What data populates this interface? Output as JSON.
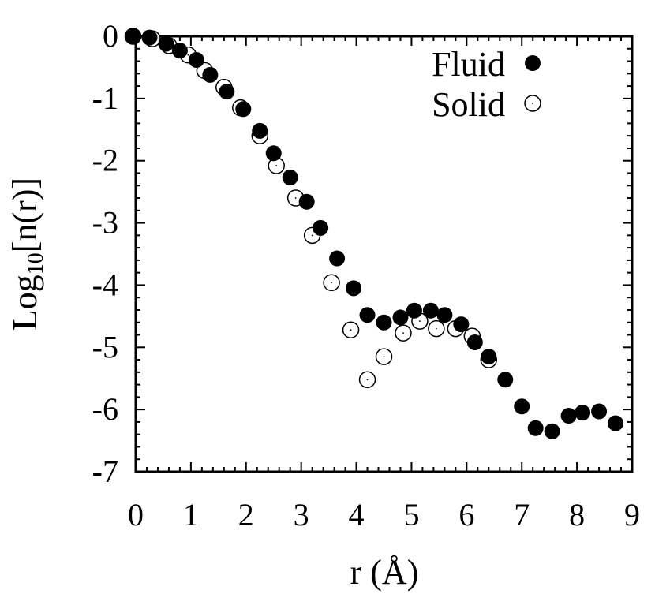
{
  "chart_data": {
    "type": "scatter",
    "xlabel": "r (Å)",
    "ylabel_main": "Log",
    "ylabel_sub": "10",
    "ylabel_tail": "[n(r)]",
    "xlim": [
      0,
      9
    ],
    "ylim": [
      -7,
      0
    ],
    "xticks": [
      0,
      1,
      2,
      3,
      4,
      5,
      6,
      7,
      8,
      9
    ],
    "yticks": [
      0,
      -1,
      -2,
      -3,
      -4,
      -5,
      -6,
      -7
    ],
    "legend_position": "top-right",
    "series": [
      {
        "name": "Fluid",
        "marker": "filled-circle",
        "color": "#000000",
        "points": [
          [
            -0.05,
            0.0
          ],
          [
            0.25,
            -0.02
          ],
          [
            0.55,
            -0.12
          ],
          [
            0.8,
            -0.23
          ],
          [
            1.1,
            -0.38
          ],
          [
            1.35,
            -0.62
          ],
          [
            1.65,
            -0.89
          ],
          [
            1.95,
            -1.17
          ],
          [
            2.25,
            -1.52
          ],
          [
            2.5,
            -1.88
          ],
          [
            2.8,
            -2.27
          ],
          [
            3.1,
            -2.66
          ],
          [
            3.35,
            -3.08
          ],
          [
            3.65,
            -3.57
          ],
          [
            3.95,
            -4.05
          ],
          [
            4.2,
            -4.48
          ],
          [
            4.5,
            -4.6
          ],
          [
            4.8,
            -4.52
          ],
          [
            5.05,
            -4.41
          ],
          [
            5.35,
            -4.41
          ],
          [
            5.6,
            -4.48
          ],
          [
            5.9,
            -4.63
          ],
          [
            6.15,
            -4.92
          ],
          [
            6.4,
            -5.15
          ],
          [
            6.7,
            -5.52
          ],
          [
            7.0,
            -5.95
          ],
          [
            7.25,
            -6.3
          ],
          [
            7.55,
            -6.35
          ],
          [
            7.85,
            -6.1
          ],
          [
            8.1,
            -6.05
          ],
          [
            8.4,
            -6.03
          ],
          [
            8.7,
            -6.22
          ]
        ]
      },
      {
        "name": "Solid",
        "marker": "open-circle",
        "color": "#000000",
        "points": [
          [
            -0.05,
            0.0
          ],
          [
            0.3,
            -0.04
          ],
          [
            0.6,
            -0.15
          ],
          [
            0.95,
            -0.3
          ],
          [
            1.25,
            -0.55
          ],
          [
            1.6,
            -0.82
          ],
          [
            1.9,
            -1.15
          ],
          [
            2.25,
            -1.6
          ],
          [
            2.55,
            -2.08
          ],
          [
            2.9,
            -2.6
          ],
          [
            3.2,
            -3.2
          ],
          [
            3.55,
            -3.96
          ],
          [
            3.9,
            -4.72
          ],
          [
            4.2,
            -5.52
          ],
          [
            4.5,
            -5.15
          ],
          [
            4.85,
            -4.77
          ],
          [
            5.15,
            -4.58
          ],
          [
            5.45,
            -4.7
          ],
          [
            5.8,
            -4.7
          ],
          [
            6.1,
            -4.82
          ],
          [
            6.4,
            -5.2
          ]
        ]
      }
    ]
  }
}
